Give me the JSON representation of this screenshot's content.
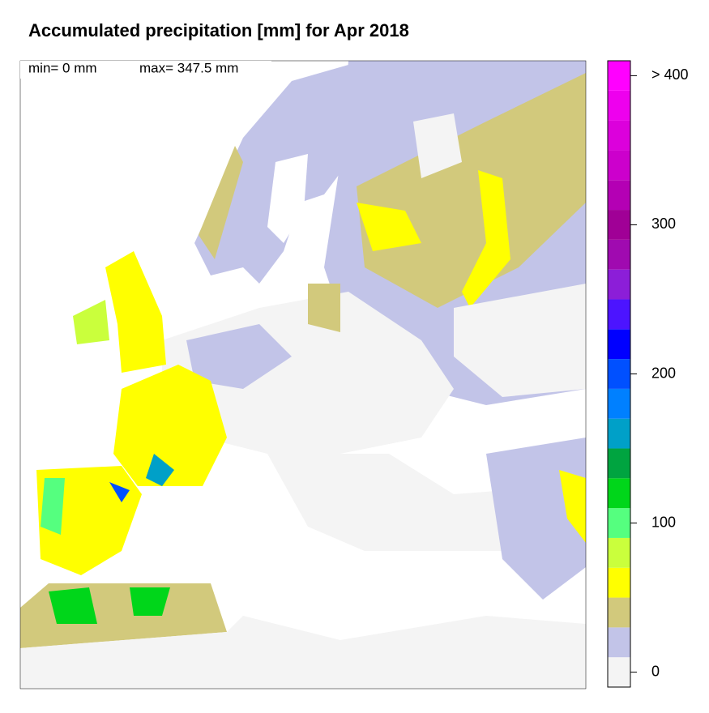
{
  "title": "Accumulated precipitation [mm] for Apr 2018",
  "stats": {
    "min": "min= 0 mm",
    "max": "max= 347.5 mm"
  },
  "colorbar": {
    "bins": [
      -10,
      10,
      30,
      50,
      70,
      90,
      110,
      130,
      150,
      170,
      190,
      210,
      230,
      250,
      270,
      290,
      310,
      330,
      350,
      370,
      390,
      410
    ],
    "colors": [
      "#f4f4f4",
      "#c2c4e8",
      "#d2c97c",
      "#ffff00",
      "#caff3c",
      "#55ff7f",
      "#00d61a",
      "#00a440",
      "#00a0c8",
      "#0080ff",
      "#0050ff",
      "#0000ff",
      "#4c14ff",
      "#8c1ed8",
      "#a00ab0",
      "#a00096",
      "#b400b4",
      "#cc00cc",
      "#dc00dc",
      "#ee00ee",
      "#ff00ff"
    ],
    "ylim": [
      -10,
      410
    ],
    "yticks": [
      0,
      100,
      200,
      300,
      {
        "value": 400,
        "label": "> 400"
      }
    ]
  }
}
